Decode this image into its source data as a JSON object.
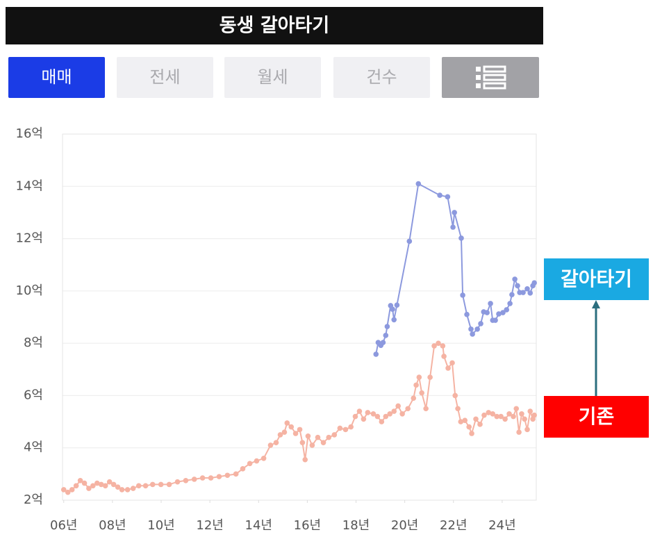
{
  "header": {
    "title": "동생 갈아타기"
  },
  "tabs": [
    "매매",
    "전세",
    "월세",
    "건수"
  ],
  "chart_data": {
    "type": "line",
    "xlim": [
      2005.95,
      2025.4
    ],
    "xticks": [
      {
        "value": 2006,
        "label": "06년"
      },
      {
        "value": 2008,
        "label": "08년"
      },
      {
        "value": 2010,
        "label": "10년"
      },
      {
        "value": 2012,
        "label": "12년"
      },
      {
        "value": 2014,
        "label": "14년"
      },
      {
        "value": 2016,
        "label": "16년"
      },
      {
        "value": 2018,
        "label": "18년"
      },
      {
        "value": 2020,
        "label": "20년"
      },
      {
        "value": 2022,
        "label": "22년"
      },
      {
        "value": 2024,
        "label": "24년"
      }
    ],
    "ylim": [
      2,
      16
    ],
    "yticks": [
      {
        "value": 2,
        "label": "2억"
      },
      {
        "value": 4,
        "label": "4억"
      },
      {
        "value": 6,
        "label": "6억"
      },
      {
        "value": 8,
        "label": "8억"
      },
      {
        "value": 10,
        "label": "10억"
      },
      {
        "value": 12,
        "label": "12억"
      },
      {
        "value": 14,
        "label": "14억"
      },
      {
        "value": 16,
        "label": "16억"
      }
    ],
    "grid": true,
    "series": [
      {
        "name": "기존",
        "color": "#f5b3a3",
        "label_color": "#ff0000",
        "x": [
          2006.0,
          2006.17,
          2006.34,
          2006.51,
          2006.68,
          2006.85,
          2007.03,
          2007.2,
          2007.37,
          2007.54,
          2007.71,
          2007.88,
          2008.05,
          2008.22,
          2008.39,
          2008.62,
          2008.85,
          2009.08,
          2009.36,
          2009.65,
          2009.99,
          2010.33,
          2010.67,
          2011.01,
          2011.36,
          2011.7,
          2012.04,
          2012.38,
          2012.72,
          2013.07,
          2013.35,
          2013.64,
          2013.92,
          2014.21,
          2014.49,
          2014.72,
          2014.89,
          2015.06,
          2015.17,
          2015.34,
          2015.52,
          2015.69,
          2015.8,
          2015.91,
          2016.03,
          2016.2,
          2016.43,
          2016.66,
          2016.88,
          2017.11,
          2017.34,
          2017.57,
          2017.79,
          2017.97,
          2018.14,
          2018.31,
          2018.48,
          2018.71,
          2018.88,
          2019.05,
          2019.22,
          2019.39,
          2019.56,
          2019.73,
          2019.9,
          2020.13,
          2020.36,
          2020.47,
          2020.59,
          2020.7,
          2020.87,
          2021.04,
          2021.21,
          2021.38,
          2021.56,
          2021.61,
          2021.78,
          2021.95,
          2022.07,
          2022.18,
          2022.3,
          2022.47,
          2022.64,
          2022.75,
          2022.92,
          2023.09,
          2023.26,
          2023.44,
          2023.61,
          2023.78,
          2023.95,
          2024.12,
          2024.29,
          2024.46,
          2024.58,
          2024.69,
          2024.8,
          2024.92,
          2025.03,
          2025.15,
          2025.26,
          2025.32
        ],
        "values": [
          2.4,
          2.3,
          2.4,
          2.55,
          2.75,
          2.65,
          2.45,
          2.55,
          2.65,
          2.6,
          2.55,
          2.7,
          2.6,
          2.5,
          2.4,
          2.4,
          2.45,
          2.55,
          2.55,
          2.6,
          2.6,
          2.6,
          2.7,
          2.75,
          2.8,
          2.85,
          2.85,
          2.9,
          2.95,
          3.0,
          3.2,
          3.4,
          3.5,
          3.6,
          4.1,
          4.2,
          4.5,
          4.6,
          4.95,
          4.8,
          4.55,
          4.7,
          4.2,
          3.55,
          4.45,
          4.1,
          4.4,
          4.2,
          4.4,
          4.5,
          4.75,
          4.7,
          4.8,
          5.2,
          5.4,
          5.1,
          5.35,
          5.3,
          5.2,
          5.0,
          5.2,
          5.3,
          5.4,
          5.6,
          5.3,
          5.5,
          5.9,
          6.4,
          6.7,
          6.1,
          5.5,
          6.7,
          7.9,
          8.0,
          7.9,
          7.5,
          7.05,
          7.25,
          6.0,
          5.5,
          5.0,
          5.05,
          4.8,
          4.55,
          5.1,
          4.9,
          5.25,
          5.35,
          5.3,
          5.2,
          5.2,
          5.1,
          5.3,
          5.2,
          5.5,
          4.6,
          5.3,
          5.1,
          4.7,
          5.4,
          5.1,
          5.25
        ]
      },
      {
        "name": "갈아타기",
        "color": "#8c99de",
        "label_color": "#1aa9e2",
        "x": [
          2018.82,
          2018.91,
          2019.02,
          2019.11,
          2019.22,
          2019.28,
          2019.42,
          2019.5,
          2019.56,
          2019.68,
          2020.19,
          2020.56,
          2021.44,
          2021.76,
          2021.98,
          2022.04,
          2022.32,
          2022.38,
          2022.55,
          2022.72,
          2022.78,
          2022.98,
          2023.12,
          2023.24,
          2023.38,
          2023.52,
          2023.61,
          2023.72,
          2023.86,
          2024.03,
          2024.18,
          2024.32,
          2024.4,
          2024.52,
          2024.63,
          2024.72,
          2024.86,
          2025.03,
          2025.15,
          2025.26,
          2025.32
        ],
        "values": [
          7.58,
          8.03,
          7.92,
          8.03,
          8.3,
          8.64,
          9.44,
          9.3,
          8.9,
          9.46,
          11.9,
          14.1,
          13.66,
          13.6,
          12.44,
          13.0,
          12.02,
          9.84,
          9.1,
          8.54,
          8.35,
          8.54,
          8.75,
          9.2,
          9.17,
          9.52,
          8.88,
          8.88,
          9.12,
          9.17,
          9.28,
          9.52,
          9.86,
          10.45,
          10.2,
          9.94,
          9.94,
          10.08,
          9.92,
          10.2,
          10.31
        ]
      }
    ]
  }
}
